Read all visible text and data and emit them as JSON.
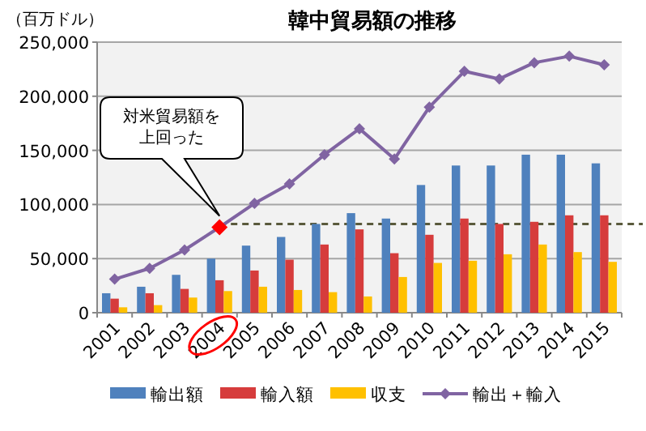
{
  "chart_data": {
    "type": "bar",
    "title": "韓中貿易額の推移",
    "ylabel": "（百万ドル）",
    "categories": [
      "2001",
      "2002",
      "2003",
      "2004",
      "2005",
      "2006",
      "2007",
      "2008",
      "2009",
      "2010",
      "2011",
      "2012",
      "2013",
      "2014",
      "2015"
    ],
    "series": [
      {
        "name": "輸出額",
        "color": "#4f81bd",
        "values": [
          18000,
          24000,
          35000,
          50000,
          62000,
          70000,
          82000,
          92000,
          87000,
          118000,
          136000,
          136000,
          146000,
          146000,
          138000
        ]
      },
      {
        "name": "輸入額",
        "color": "#d63c3c",
        "values": [
          13000,
          18000,
          22000,
          30000,
          39000,
          49000,
          63000,
          77000,
          55000,
          72000,
          87000,
          82000,
          84000,
          90000,
          90000
        ]
      },
      {
        "name": "収支",
        "color": "#ffc000",
        "values": [
          5000,
          7000,
          14000,
          20000,
          24000,
          21000,
          19000,
          15000,
          33000,
          46000,
          48000,
          54000,
          63000,
          56000,
          47000
        ]
      },
      {
        "name": "輸出＋輸入",
        "type": "line",
        "color": "#8064a2",
        "marker": "diamond",
        "colors": [
          "#8064a2",
          "#8064a2",
          "#8064a2",
          "#ff0000",
          "#8064a2",
          "#8064a2",
          "#8064a2",
          "#8064a2",
          "#8064a2",
          "#8064a2",
          "#8064a2",
          "#8064a2",
          "#8064a2",
          "#8064a2",
          "#8064a2"
        ],
        "values": [
          31000,
          41000,
          58000,
          79000,
          101000,
          119000,
          146000,
          170000,
          142000,
          190000,
          223000,
          216000,
          231000,
          237000,
          229000
        ]
      }
    ],
    "ylim": [
      0,
      250000
    ],
    "yticks": [
      {
        "value": 0,
        "label": "0"
      },
      {
        "value": 50000,
        "label": "50,000"
      },
      {
        "value": 100000,
        "label": "100,000"
      },
      {
        "value": 150000,
        "label": "150,000"
      },
      {
        "value": 200000,
        "label": "200,000"
      },
      {
        "value": 250000,
        "label": "250,000"
      }
    ],
    "grid": "y",
    "legend": "bottom",
    "ref_lines": [
      {
        "axis": "y",
        "value": 82000,
        "color": "#5a5a3c",
        "line_style": "dashed"
      }
    ],
    "annotations": [
      "対米貿易額を上回った"
    ]
  }
}
